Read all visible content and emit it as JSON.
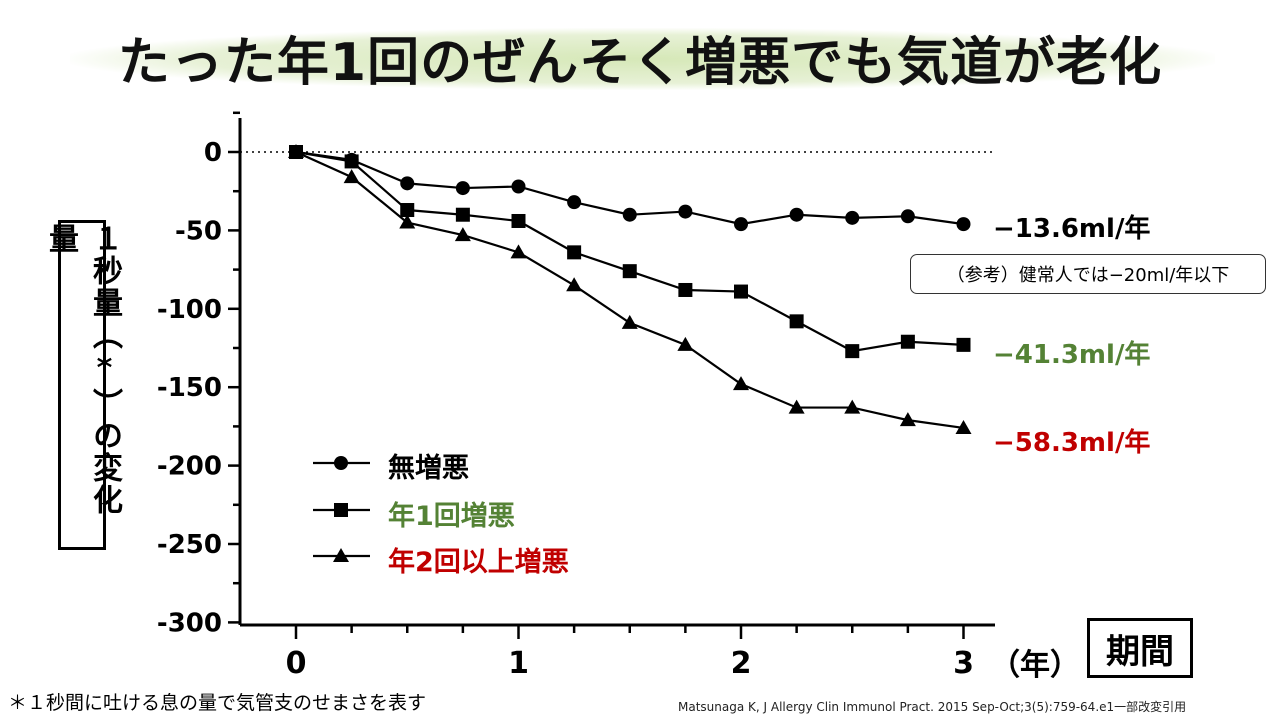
{
  "title": "たった年1回のぜんそく増悪でも気道が老化",
  "ylabel": "１秒量（*）の変化量",
  "xlabel_box": "期間",
  "x_unit": "（年）",
  "reference_note": "（参考）健常人では−20ml/年以下",
  "footnote": "＊１秒間に吐ける息の量で気管支のせまさを表す",
  "citation": "Matsunaga K, J Allergy Clin Immunol Pract. 2015 Sep-Oct;3(5):759-64.e1一部改変引用",
  "colors": {
    "black": "#000000",
    "green": "#548235",
    "red": "#c00000"
  },
  "chart_data": {
    "type": "line",
    "x": [
      0,
      0.25,
      0.5,
      0.75,
      1,
      1.25,
      1.5,
      1.75,
      2,
      2.25,
      2.5,
      2.75,
      3
    ],
    "xticks": [
      "0",
      "1",
      "2",
      "3"
    ],
    "yticks": [
      "0",
      "-50",
      "-100",
      "-150",
      "-200",
      "-250",
      "-300"
    ],
    "xlim": [
      -0.25,
      3.1
    ],
    "ylim": [
      -300,
      20
    ],
    "reference_line_y": 0,
    "series": [
      {
        "name": "無増悪",
        "marker": "circle",
        "color": "#000000",
        "rate": "−13.6ml/年",
        "values": [
          0,
          -5,
          -20,
          -23,
          -22,
          -32,
          -40,
          -38,
          -46,
          -40,
          -42,
          -41,
          -46
        ]
      },
      {
        "name": "年1回増悪",
        "marker": "square",
        "color": "#548235",
        "rate": "−41.3ml/年",
        "values": [
          0,
          -6,
          -37,
          -40,
          -44,
          -64,
          -76,
          -88,
          -89,
          -108,
          -127,
          -121,
          -123
        ]
      },
      {
        "name": "年2回以上増悪",
        "marker": "triangle",
        "color": "#c00000",
        "rate": "−58.3ml/年",
        "values": [
          0,
          -16,
          -45,
          -53,
          -64,
          -85,
          -109,
          -123,
          -148,
          -163,
          -163,
          -171,
          -176
        ]
      }
    ]
  }
}
